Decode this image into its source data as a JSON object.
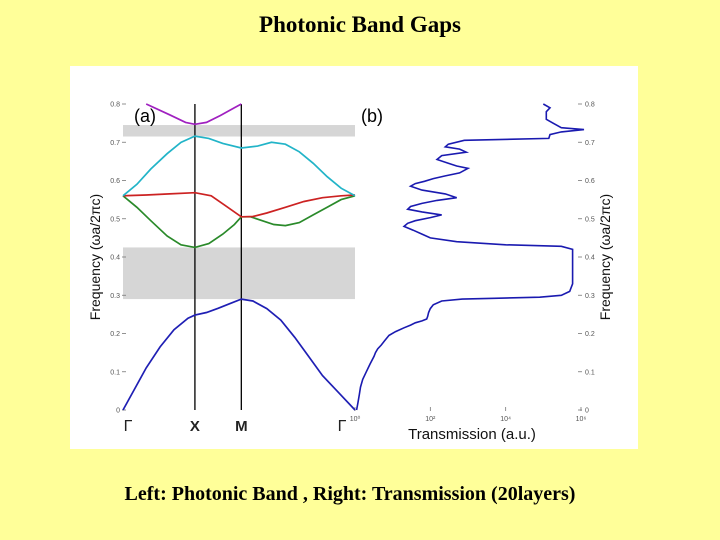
{
  "slide": {
    "title": "Photonic Band Gaps",
    "caption": "Left: Photonic Band , Right: Transmission (20layers)"
  },
  "chart_data": [
    {
      "type": "line",
      "panel_label": "(a)",
      "ylabel": "Frequency (ωa/2πc)",
      "categories": [
        "Γ",
        "X",
        "M",
        "Γ"
      ],
      "ylim": [
        0,
        0.8
      ],
      "yticks": [
        "0",
        "0.1",
        "0.2",
        "0.3",
        "0.4",
        "0.5",
        "0.6",
        "0.7",
        "0.8"
      ],
      "band_gaps": [
        [
          0.29,
          0.425
        ],
        [
          0.715,
          0.745
        ]
      ],
      "series": [
        {
          "color": "#1f1fb4",
          "points": [
            [
              0,
              0
            ],
            [
              0.05,
              0.055
            ],
            [
              0.1,
              0.11
            ],
            [
              0.16,
              0.165
            ],
            [
              0.22,
              0.21
            ],
            [
              0.28,
              0.24
            ],
            [
              0.31,
              0.248
            ],
            [
              0.36,
              0.255
            ],
            [
              0.41,
              0.266
            ],
            [
              0.46,
              0.278
            ],
            [
              0.51,
              0.29
            ],
            [
              0.56,
              0.285
            ],
            [
              0.62,
              0.265
            ],
            [
              0.68,
              0.235
            ],
            [
              0.74,
              0.19
            ],
            [
              0.8,
              0.14
            ],
            [
              0.86,
              0.09
            ],
            [
              0.93,
              0.045
            ],
            [
              1.0,
              0
            ]
          ]
        },
        {
          "color": "#2a8a2a",
          "points": [
            [
              0,
              0.56
            ],
            [
              0.06,
              0.53
            ],
            [
              0.12,
              0.495
            ],
            [
              0.19,
              0.455
            ],
            [
              0.25,
              0.432
            ],
            [
              0.31,
              0.425
            ],
            [
              0.37,
              0.435
            ],
            [
              0.43,
              0.46
            ],
            [
              0.48,
              0.485
            ],
            [
              0.51,
              0.505
            ],
            [
              0.55,
              0.505
            ],
            [
              0.6,
              0.495
            ],
            [
              0.65,
              0.485
            ],
            [
              0.7,
              0.482
            ],
            [
              0.76,
              0.49
            ],
            [
              0.82,
              0.51
            ],
            [
              0.88,
              0.53
            ],
            [
              0.94,
              0.55
            ],
            [
              1.0,
              0.56
            ]
          ]
        },
        {
          "color": "#cc2222",
          "points": [
            [
              0,
              0.56
            ],
            [
              0.1,
              0.562
            ],
            [
              0.2,
              0.565
            ],
            [
              0.31,
              0.568
            ],
            [
              0.38,
              0.56
            ],
            [
              0.44,
              0.535
            ],
            [
              0.51,
              0.505
            ],
            [
              0.56,
              0.506
            ],
            [
              0.62,
              0.515
            ],
            [
              0.7,
              0.53
            ],
            [
              0.78,
              0.545
            ],
            [
              0.86,
              0.555
            ],
            [
              0.94,
              0.56
            ],
            [
              1.0,
              0.562
            ]
          ]
        },
        {
          "color": "#22b4c8",
          "points": [
            [
              0,
              0.56
            ],
            [
              0.06,
              0.59
            ],
            [
              0.12,
              0.63
            ],
            [
              0.19,
              0.67
            ],
            [
              0.25,
              0.7
            ],
            [
              0.31,
              0.716
            ],
            [
              0.37,
              0.71
            ],
            [
              0.43,
              0.697
            ],
            [
              0.51,
              0.685
            ],
            [
              0.58,
              0.69
            ],
            [
              0.64,
              0.7
            ],
            [
              0.7,
              0.695
            ],
            [
              0.76,
              0.675
            ],
            [
              0.82,
              0.645
            ],
            [
              0.88,
              0.61
            ],
            [
              0.94,
              0.58
            ],
            [
              1.0,
              0.56
            ]
          ]
        },
        {
          "color": "#a020c0",
          "points": [
            [
              0.1,
              0.8
            ],
            [
              0.2,
              0.772
            ],
            [
              0.27,
              0.752
            ],
            [
              0.31,
              0.747
            ],
            [
              0.36,
              0.752
            ],
            [
              0.42,
              0.77
            ],
            [
              0.48,
              0.79
            ],
            [
              0.51,
              0.8
            ]
          ]
        }
      ]
    },
    {
      "type": "line",
      "panel_label": "(b)",
      "xlabel": "Transmission (a.u.)",
      "ylabel": "Frequency (ωa/2πc)",
      "xscale": "log",
      "xticks": [
        "10⁰",
        "10²",
        "10⁴",
        "10⁶"
      ],
      "ylim": [
        0,
        0.8
      ],
      "yticks": [
        "0",
        "0.1",
        "0.2",
        "0.3",
        "0.4",
        "0.5",
        "0.6",
        "0.7",
        "0.8"
      ],
      "series": [
        {
          "color": "#1a1ab0",
          "points": [
            [
              100000,
              0.8
            ],
            [
              150000,
              0.79
            ],
            [
              120000,
              0.78
            ],
            [
              120000,
              0.76
            ],
            [
              180000,
              0.75
            ],
            [
              300000,
              0.738
            ],
            [
              1200000,
              0.733
            ],
            [
              300000,
              0.727
            ],
            [
              150000,
              0.72
            ],
            [
              140000,
              0.71
            ],
            [
              800,
              0.705
            ],
            [
              300,
              0.695
            ],
            [
              250,
              0.688
            ],
            [
              600,
              0.682
            ],
            [
              900,
              0.674
            ],
            [
              200,
              0.665
            ],
            [
              150,
              0.655
            ],
            [
              300,
              0.645
            ],
            [
              500,
              0.638
            ],
            [
              1000,
              0.632
            ],
            [
              600,
              0.62
            ],
            [
              250,
              0.612
            ],
            [
              120,
              0.605
            ],
            [
              70,
              0.598
            ],
            [
              40,
              0.592
            ],
            [
              30,
              0.585
            ],
            [
              60,
              0.575
            ],
            [
              250,
              0.565
            ],
            [
              500,
              0.555
            ],
            [
              150,
              0.548
            ],
            [
              60,
              0.54
            ],
            [
              30,
              0.532
            ],
            [
              25,
              0.525
            ],
            [
              60,
              0.518
            ],
            [
              200,
              0.51
            ],
            [
              100,
              0.503
            ],
            [
              40,
              0.495
            ],
            [
              25,
              0.488
            ],
            [
              20,
              0.48
            ],
            [
              35,
              0.47
            ],
            [
              60,
              0.46
            ],
            [
              100,
              0.45
            ],
            [
              500,
              0.44
            ],
            [
              10000,
              0.432
            ],
            [
              300000,
              0.428
            ],
            [
              600000,
              0.42
            ],
            [
              600000,
              0.4
            ],
            [
              600000,
              0.36
            ],
            [
              600000,
              0.33
            ],
            [
              500000,
              0.31
            ],
            [
              300000,
              0.3
            ],
            [
              80000,
              0.295
            ],
            [
              5000,
              0.292
            ],
            [
              700,
              0.29
            ],
            [
              200,
              0.285
            ],
            [
              120,
              0.275
            ],
            [
              100,
              0.265
            ],
            [
              90,
              0.255
            ],
            [
              85,
              0.245
            ],
            [
              80,
              0.238
            ],
            [
              60,
              0.233
            ],
            [
              40,
              0.228
            ],
            [
              30,
              0.222
            ],
            [
              20,
              0.215
            ],
            [
              12,
              0.205
            ],
            [
              8,
              0.195
            ],
            [
              6,
              0.18
            ],
            [
              5,
              0.17
            ],
            [
              4,
              0.16
            ],
            [
              3.5,
              0.15
            ],
            [
              3.2,
              0.14
            ],
            [
              2.5,
              0.12
            ],
            [
              2,
              0.1
            ],
            [
              1.6,
              0.08
            ],
            [
              1.4,
              0.06
            ],
            [
              1.3,
              0.04
            ],
            [
              1.2,
              0.02
            ],
            [
              1.1,
              0
            ]
          ]
        }
      ]
    }
  ]
}
